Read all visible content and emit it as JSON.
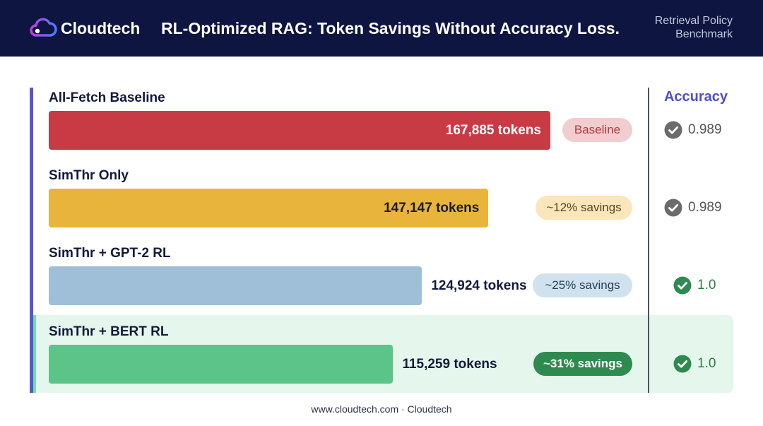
{
  "header": {
    "brand": "Cloudtech",
    "title": "RL-Optimized RAG: Token Savings Without Accuracy Loss.",
    "subtitle_line1": "Retrieval Policy",
    "subtitle_line2": "Benchmark"
  },
  "accuracy_header": "Accuracy",
  "colors": {
    "header_bg": "#0e1540",
    "accent": "#5b52d6",
    "highlight_row": "#e5f6ec",
    "check_gray": "#6b6b6b",
    "check_green": "#2e8a4f"
  },
  "chart_data": {
    "type": "bar",
    "orientation": "horizontal",
    "title": "RL-Optimized RAG: Token Savings Without Accuracy Loss.",
    "xlim": [
      0,
      196000
    ],
    "unit": "tokens",
    "categories": [
      "All-Fetch Baseline",
      "SimThr Only",
      "SimThr + GPT-2 RL",
      "SimThr + BERT RL"
    ],
    "values": [
      167885,
      147147,
      124924,
      115259
    ],
    "value_labels": [
      "167,885 tokens",
      "147,147 tokens",
      "124,924 tokens",
      "115,259 tokens"
    ],
    "savings_labels": [
      "Baseline",
      "~12% savings",
      "~25% savings",
      "~31% savings"
    ],
    "accuracy": [
      "0.989",
      "0.989",
      "1.0",
      "1.0"
    ],
    "bar_colors": [
      "#c93b44",
      "#e8b43c",
      "#9fbfd8",
      "#5cc488"
    ],
    "highlighted_category": "SimThr + BERT RL"
  },
  "footer": "www.cloudtech.com · Cloudtech"
}
